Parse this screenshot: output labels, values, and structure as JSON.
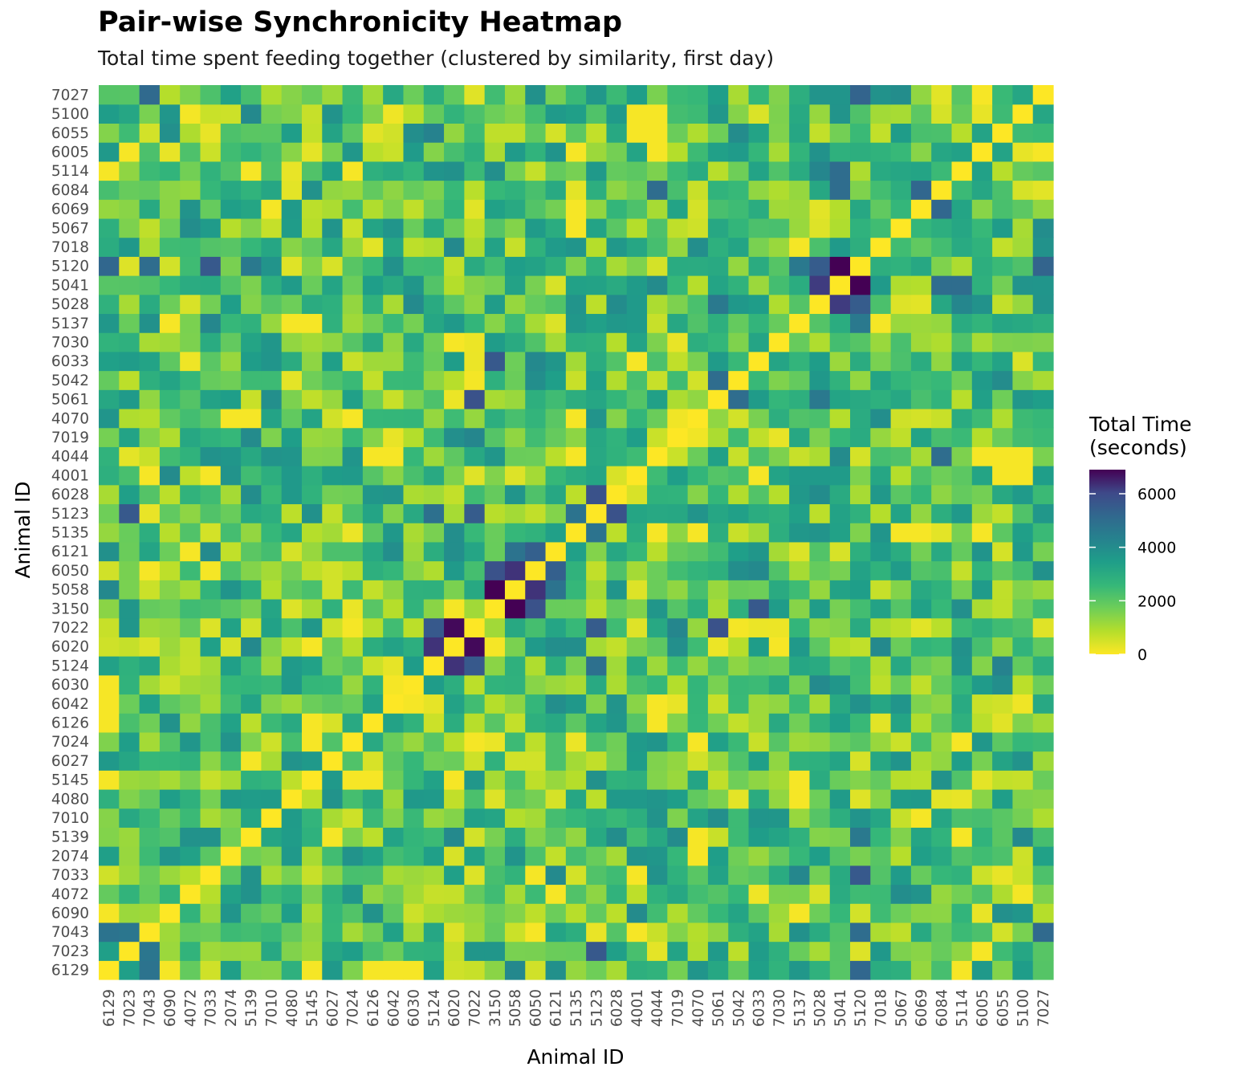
{
  "chart_data": {
    "type": "heatmap",
    "title": "Pair-wise Synchronicity Heatmap",
    "subtitle": "Total time spent feeding together (clustered by similarity, first day)",
    "xlabel": "Animal ID",
    "ylabel": "Animal ID",
    "ids": [
      "6129",
      "7023",
      "7043",
      "6090",
      "4072",
      "7033",
      "2074",
      "5139",
      "7010",
      "4080",
      "5145",
      "6027",
      "7024",
      "6126",
      "6042",
      "6030",
      "5124",
      "6020",
      "7022",
      "3150",
      "5058",
      "6050",
      "6121",
      "5135",
      "5123",
      "6028",
      "4001",
      "4044",
      "7019",
      "4070",
      "5061",
      "5042",
      "6033",
      "7030",
      "5137",
      "5028",
      "5041",
      "5120",
      "7018",
      "5067",
      "6069",
      "6084",
      "5114",
      "6005",
      "6055",
      "5100",
      "7027"
    ],
    "colorbar": {
      "title_line1": "Total Time",
      "title_line2": "(seconds)",
      "min": 0,
      "max": 6900,
      "ticks": [
        0,
        2000,
        4000,
        6000
      ],
      "tick_labels": [
        "0",
        "2000",
        "4000",
        "6000"
      ],
      "palette": "viridis (reversed: yellow = 0, dark purple = max)"
    },
    "values_note": "Symmetric 47x47 matrix; diagonal = 0 (yellow). Dark off-diagonal blocks approx: 5041-5120 6900, 5041-5028 6200, 5120-5028 5500, 5058-3150 6900, 6050-5058 6300, 6050-3150 5800, 7022-6020 6800, 6020-5124 6300, 7022-5124 5600, 5123-6028 5800, 5120-6129 5200, 5120-7033 5600. Remaining cells visually approximated in the 100-5000 range.",
    "strong_pairs": [
      {
        "a": "5041",
        "b": "5120",
        "value": 6900
      },
      {
        "a": "5041",
        "b": "5028",
        "value": 6200
      },
      {
        "a": "5120",
        "b": "5028",
        "value": 5500
      },
      {
        "a": "5058",
        "b": "3150",
        "value": 6900
      },
      {
        "a": "6050",
        "b": "5058",
        "value": 6300
      },
      {
        "a": "6050",
        "b": "3150",
        "value": 5800
      },
      {
        "a": "6121",
        "b": "6050",
        "value": 5400
      },
      {
        "a": "6121",
        "b": "5058",
        "value": 4800
      },
      {
        "a": "7022",
        "b": "6020",
        "value": 6800
      },
      {
        "a": "6020",
        "b": "5124",
        "value": 6300
      },
      {
        "a": "7022",
        "b": "5124",
        "value": 5600
      },
      {
        "a": "5123",
        "b": "6028",
        "value": 5800
      },
      {
        "a": "5123",
        "b": "7022",
        "value": 5500
      },
      {
        "a": "5123",
        "b": "5135",
        "value": 4800
      },
      {
        "a": "6033",
        "b": "3150",
        "value": 5600
      },
      {
        "a": "5061",
        "b": "7022",
        "value": 5800
      },
      {
        "a": "5061",
        "b": "5042",
        "value": 5000
      },
      {
        "a": "5120",
        "b": "6129",
        "value": 5200
      },
      {
        "a": "5120",
        "b": "7033",
        "value": 5600
      },
      {
        "a": "5120",
        "b": "7043",
        "value": 5000
      },
      {
        "a": "5120",
        "b": "5139",
        "value": 4600
      },
      {
        "a": "5120",
        "b": "5137",
        "value": 4600
      },
      {
        "a": "7023",
        "b": "5123",
        "value": 5600
      },
      {
        "a": "5124",
        "b": "5123",
        "value": 4900
      },
      {
        "a": "6129",
        "b": "7043",
        "value": 4800
      },
      {
        "a": "7023",
        "b": "7043",
        "value": 4700
      },
      {
        "a": "5114",
        "b": "5041",
        "value": 5000
      },
      {
        "a": "6084",
        "b": "5041",
        "value": 5000
      },
      {
        "a": "6069",
        "b": "6084",
        "value": 5200
      },
      {
        "a": "6084",
        "b": "4044",
        "value": 5000
      },
      {
        "a": "7027",
        "b": "5120",
        "value": 5300
      },
      {
        "a": "7027",
        "b": "7043",
        "value": 5100
      },
      {
        "a": "5028",
        "b": "5114",
        "value": 4200
      },
      {
        "a": "5028",
        "b": "5061",
        "value": 4600
      }
    ],
    "zero_pairs": [
      [
        "7027",
        "6005"
      ],
      [
        "5100",
        "4001"
      ],
      [
        "5100",
        "4044"
      ],
      [
        "6055",
        "4001"
      ],
      [
        "6055",
        "4044"
      ],
      [
        "6005",
        "4044"
      ],
      [
        "5114",
        "5139"
      ],
      [
        "5114",
        "7024"
      ],
      [
        "5067",
        "5135"
      ],
      [
        "5137",
        "6090"
      ],
      [
        "5137",
        "5145"
      ],
      [
        "5137",
        "4080"
      ],
      [
        "6033",
        "4001"
      ],
      [
        "7030",
        "6020"
      ],
      [
        "4001",
        "6033"
      ],
      [
        "4001",
        "7043"
      ],
      [
        "4044",
        "6042"
      ],
      [
        "4044",
        "5135"
      ],
      [
        "4070",
        "5135"
      ],
      [
        "5135",
        "6005"
      ],
      [
        "5135",
        "6069"
      ],
      [
        "6020",
        "5145"
      ],
      [
        "6030",
        "6129"
      ],
      [
        "6042",
        "6129"
      ],
      [
        "6126",
        "5145"
      ],
      [
        "6126",
        "4044"
      ],
      [
        "7024",
        "4070"
      ],
      [
        "5145",
        "7024"
      ],
      [
        "5139",
        "4070"
      ],
      [
        "2074",
        "4070"
      ],
      [
        "7033",
        "4001"
      ],
      [
        "6090",
        "5137"
      ],
      [
        "4072",
        "6121"
      ],
      [
        "7043",
        "6050"
      ],
      [
        "7023",
        "6005"
      ],
      [
        "6129",
        "6126"
      ],
      [
        "6129",
        "5114"
      ]
    ]
  }
}
